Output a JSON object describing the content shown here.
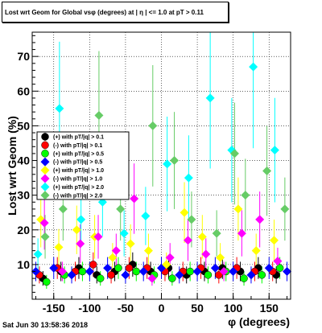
{
  "title": "Lost wrt Geom for Global vsφ (degrees) at | η | <= 1.0 at pT > 0.11",
  "timestamp": "Sat Jun 30 13:58:36 2018",
  "chart_data": {
    "type": "scatter",
    "xlabel": "φ (degrees)",
    "ylabel": "Lost wrt Geom (%)",
    "xlim": [
      -180,
      180
    ],
    "ylim": [
      0,
      77
    ],
    "xticks": [
      -150,
      -100,
      -50,
      0,
      50,
      100,
      150
    ],
    "yticks": [
      10,
      20,
      30,
      40,
      50,
      60,
      70
    ],
    "grid": true,
    "legend_position": "left",
    "series": [
      {
        "name": "(+) with pT/|q| > 0.1",
        "color": "#000000",
        "marker": "circle",
        "x": [
          -165,
          -140,
          -115,
          -90,
          -65,
          -40,
          -15,
          10,
          35,
          60,
          85,
          110,
          135,
          160
        ],
        "y": [
          6,
          8,
          9,
          7,
          8,
          10,
          8,
          9,
          7,
          8,
          9,
          8,
          9,
          7
        ]
      },
      {
        "name": "(-) with pT/|q| > 0.1",
        "color": "#ff0000",
        "marker": "circle",
        "x": [
          -170,
          -145,
          -120,
          -95,
          -70,
          -45,
          -20,
          5,
          30,
          55,
          80,
          105,
          130,
          155
        ],
        "y": [
          7,
          9,
          8,
          10,
          7,
          9,
          9,
          8,
          8,
          9,
          7,
          9,
          8,
          8
        ]
      },
      {
        "name": "(+) with pT/|q| > 0.5",
        "color": "#00ff00",
        "marker": "circle",
        "x": [
          -160,
          -135,
          -110,
          -85,
          -60,
          -35,
          -10,
          15,
          40,
          65,
          90,
          115,
          140,
          165
        ],
        "y": [
          5,
          7,
          8,
          6,
          9,
          8,
          7,
          6,
          8,
          7,
          8,
          6,
          7,
          9
        ]
      },
      {
        "name": "(-) with pT/|q| > 0.5",
        "color": "#0000ff",
        "marker": "diamond",
        "x": [
          -175,
          -150,
          -125,
          -100,
          -75,
          -50,
          -25,
          0,
          25,
          50,
          75,
          100,
          125,
          150,
          175
        ],
        "y": [
          8,
          9,
          7,
          8,
          9,
          7,
          8,
          9,
          7,
          8,
          9,
          8,
          7,
          9,
          8
        ]
      },
      {
        "name": "(+) with pT/|q| > 1.0",
        "color": "#ffff00",
        "marker": "diamond",
        "x": [
          -168,
          -143,
          -118,
          -93,
          -68,
          -43,
          -18,
          7,
          32,
          57,
          82,
          107,
          132,
          157
        ],
        "y": [
          23,
          15,
          20,
          18,
          12,
          16,
          14,
          10,
          25,
          18,
          12,
          26,
          14,
          17
        ]
      },
      {
        "name": "(-) with pT/|q| > 1.0",
        "color": "#ff00ff",
        "marker": "diamond",
        "x": [
          -163,
          -138,
          -113,
          -88,
          -63,
          -38,
          -13,
          12,
          37,
          62,
          87,
          112,
          137,
          162
        ],
        "y": [
          22,
          8,
          16,
          18,
          14,
          29,
          6,
          12,
          17,
          13,
          8,
          19,
          23,
          11
        ]
      },
      {
        "name": "(+) with pT/|q| > 2.0",
        "color": "#00ffff",
        "marker": "diamond",
        "x": [
          -172,
          -142,
          -112,
          -82,
          -52,
          -22,
          8,
          38,
          68,
          98,
          128,
          158
        ],
        "y": [
          13,
          55,
          23,
          28,
          19,
          24,
          39,
          35,
          58,
          43,
          67,
          43
        ]
      },
      {
        "name": "(-) with pT/|q| > 2.0",
        "color": "#66cc66",
        "marker": "diamond",
        "x": [
          -162,
          -137,
          -87,
          -57,
          -12,
          18,
          42,
          77,
          102,
          117,
          147,
          172
        ],
        "y": [
          18,
          26,
          53,
          26,
          50,
          40,
          23,
          19,
          42,
          30,
          37,
          26
        ]
      }
    ]
  }
}
